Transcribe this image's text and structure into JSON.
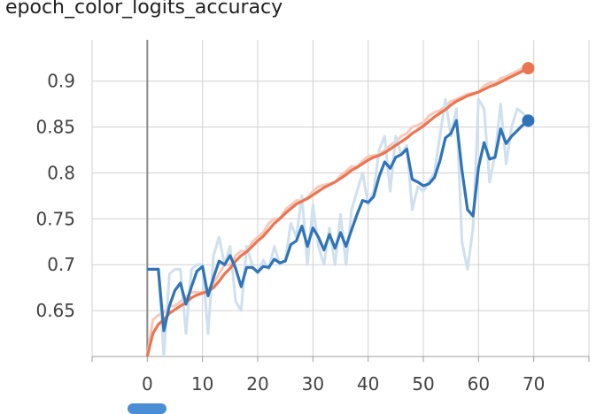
{
  "chart_data": {
    "type": "line",
    "title": "epoch_color_logits_accuracy",
    "xlabel": "",
    "ylabel": "",
    "xlim": [
      -10,
      80
    ],
    "ylim": [
      0.6,
      0.945
    ],
    "x_ticks": [
      0,
      10,
      20,
      30,
      40,
      50,
      60,
      70
    ],
    "y_ticks": [
      0.65,
      0.7,
      0.75,
      0.8,
      0.85,
      0.9
    ],
    "grid": true,
    "colors": {
      "orange_smoothed": "#ec7551",
      "orange_raw": "#f9c9b9",
      "blue_smoothed": "#2f74b8",
      "blue_raw": "#cfe0ee",
      "grid": "#d0d0d0",
      "axis": "#9e9e9e"
    },
    "series": [
      {
        "key": "orange",
        "x": [
          0,
          1,
          2,
          3,
          4,
          5,
          6,
          7,
          8,
          9,
          10,
          11,
          12,
          13,
          14,
          15,
          16,
          17,
          18,
          19,
          20,
          21,
          22,
          23,
          24,
          25,
          26,
          27,
          28,
          29,
          30,
          31,
          32,
          33,
          34,
          35,
          36,
          37,
          38,
          39,
          40,
          41,
          42,
          43,
          44,
          45,
          46,
          47,
          48,
          49,
          50,
          51,
          52,
          53,
          54,
          55,
          56,
          57,
          58,
          59,
          60,
          61,
          62,
          63,
          64,
          65,
          66,
          67,
          68,
          69
        ],
        "smoothed": [
          0.6,
          0.625,
          0.635,
          0.64,
          0.647,
          0.651,
          0.655,
          0.659,
          0.664,
          0.667,
          0.669,
          0.671,
          0.675,
          0.682,
          0.69,
          0.696,
          0.704,
          0.71,
          0.714,
          0.72,
          0.726,
          0.731,
          0.738,
          0.745,
          0.75,
          0.756,
          0.761,
          0.766,
          0.769,
          0.772,
          0.776,
          0.78,
          0.784,
          0.787,
          0.79,
          0.794,
          0.798,
          0.803,
          0.806,
          0.81,
          0.814,
          0.817,
          0.819,
          0.822,
          0.826,
          0.83,
          0.834,
          0.838,
          0.843,
          0.847,
          0.851,
          0.856,
          0.861,
          0.865,
          0.869,
          0.874,
          0.878,
          0.881,
          0.884,
          0.886,
          0.888,
          0.891,
          0.894,
          0.896,
          0.899,
          0.902,
          0.905,
          0.908,
          0.911,
          0.914
        ],
        "raw": [
          0.6,
          0.64,
          0.645,
          0.648,
          0.655,
          0.655,
          0.66,
          0.665,
          0.67,
          0.67,
          0.67,
          0.673,
          0.68,
          0.69,
          0.7,
          0.7,
          0.71,
          0.715,
          0.715,
          0.725,
          0.73,
          0.735,
          0.745,
          0.75,
          0.75,
          0.76,
          0.765,
          0.77,
          0.77,
          0.773,
          0.78,
          0.785,
          0.787,
          0.788,
          0.79,
          0.797,
          0.802,
          0.807,
          0.807,
          0.813,
          0.818,
          0.819,
          0.82,
          0.825,
          0.83,
          0.834,
          0.84,
          0.843,
          0.85,
          0.852,
          0.855,
          0.862,
          0.866,
          0.868,
          0.873,
          0.878,
          0.88,
          0.883,
          0.886,
          0.887,
          0.888,
          0.895,
          0.898,
          0.898,
          0.903,
          0.905,
          0.908,
          0.911,
          0.914,
          0.915
        ]
      },
      {
        "key": "blue",
        "x": [
          0,
          1,
          2,
          3,
          4,
          5,
          6,
          7,
          8,
          9,
          10,
          11,
          12,
          13,
          14,
          15,
          16,
          17,
          18,
          19,
          20,
          21,
          22,
          23,
          24,
          25,
          26,
          27,
          28,
          29,
          30,
          31,
          32,
          33,
          34,
          35,
          36,
          37,
          38,
          39,
          40,
          41,
          42,
          43,
          44,
          45,
          46,
          47,
          48,
          49,
          50,
          51,
          52,
          53,
          54,
          55,
          56,
          57,
          58,
          59,
          60,
          61,
          62,
          63,
          64,
          65,
          66,
          67,
          68,
          69
        ],
        "smoothed": [
          0.695,
          0.695,
          0.695,
          0.628,
          0.655,
          0.672,
          0.68,
          0.657,
          0.676,
          0.693,
          0.698,
          0.666,
          0.686,
          0.704,
          0.7,
          0.71,
          0.696,
          0.676,
          0.697,
          0.697,
          0.692,
          0.698,
          0.697,
          0.706,
          0.702,
          0.704,
          0.722,
          0.726,
          0.742,
          0.72,
          0.74,
          0.73,
          0.716,
          0.733,
          0.718,
          0.735,
          0.72,
          0.738,
          0.755,
          0.77,
          0.768,
          0.774,
          0.796,
          0.812,
          0.805,
          0.817,
          0.82,
          0.826,
          0.793,
          0.79,
          0.786,
          0.788,
          0.795,
          0.813,
          0.838,
          0.843,
          0.857,
          0.803,
          0.76,
          0.753,
          0.806,
          0.833,
          0.815,
          0.817,
          0.848,
          0.832,
          0.84,
          0.846,
          0.852,
          0.857
        ],
        "raw": [
          0.695,
          0.695,
          0.695,
          0.6,
          0.69,
          0.695,
          0.695,
          0.625,
          0.695,
          0.7,
          0.7,
          0.625,
          0.71,
          0.73,
          0.7,
          0.72,
          0.66,
          0.65,
          0.72,
          0.7,
          0.69,
          0.705,
          0.695,
          0.72,
          0.7,
          0.705,
          0.745,
          0.73,
          0.775,
          0.7,
          0.765,
          0.72,
          0.7,
          0.74,
          0.7,
          0.755,
          0.7,
          0.76,
          0.78,
          0.8,
          0.765,
          0.78,
          0.825,
          0.84,
          0.78,
          0.84,
          0.82,
          0.83,
          0.76,
          0.785,
          0.78,
          0.79,
          0.8,
          0.84,
          0.88,
          0.84,
          0.87,
          0.725,
          0.695,
          0.74,
          0.88,
          0.87,
          0.79,
          0.82,
          0.875,
          0.81,
          0.85,
          0.87,
          0.865,
          0.86
        ]
      }
    ]
  }
}
